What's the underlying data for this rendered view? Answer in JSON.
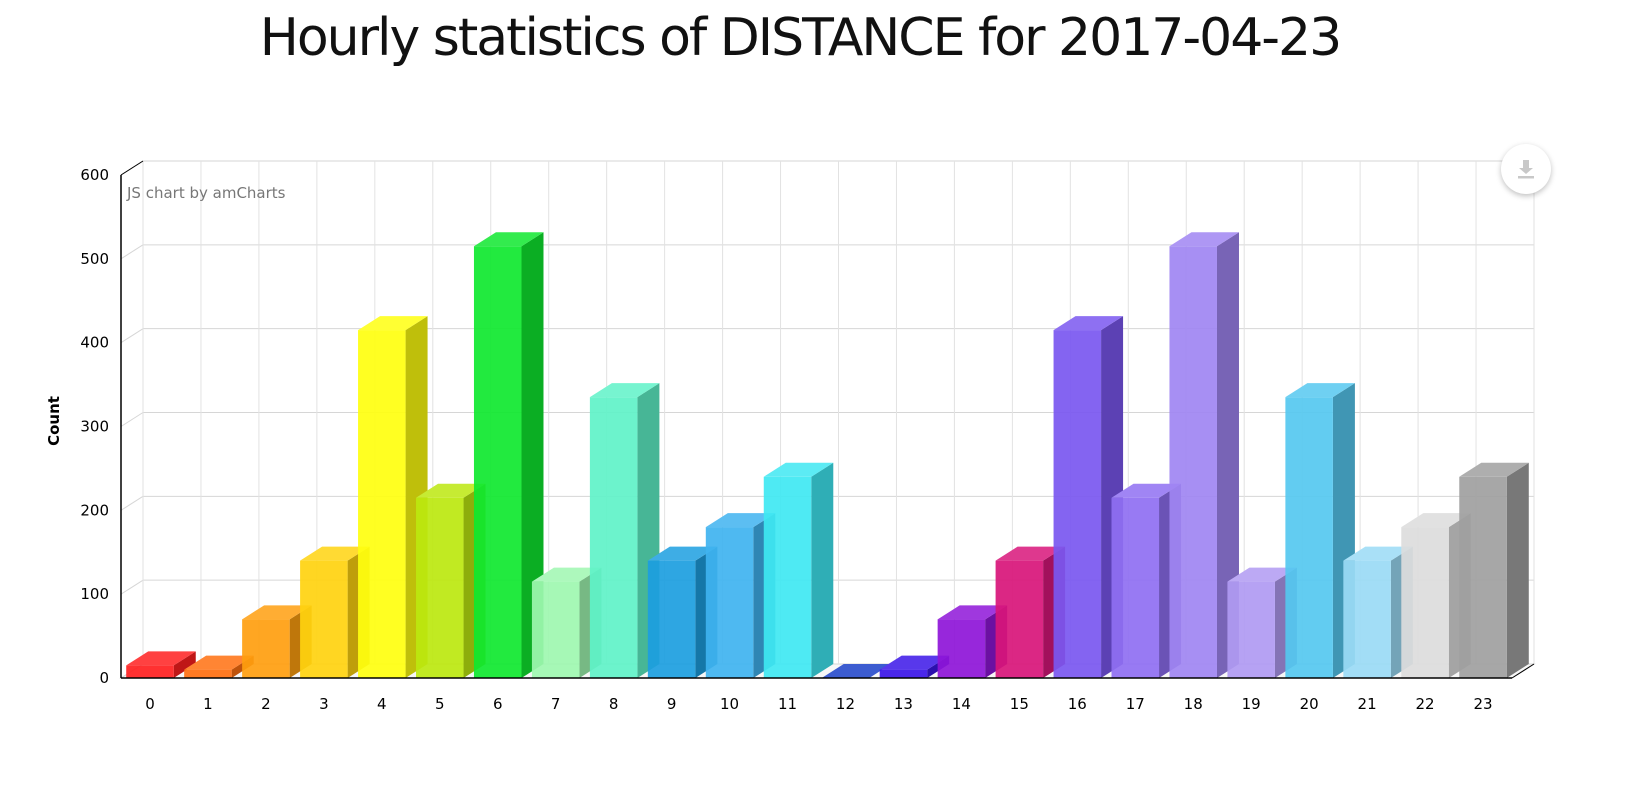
{
  "page": {
    "title": "Hourly statistics of DISTANCE for 2017-04-23",
    "credit": "JS chart by amCharts",
    "export_icon": "download-icon"
  },
  "chart_data": {
    "type": "bar",
    "title": "Hourly statistics of DISTANCE for 2017-04-23",
    "xlabel": "",
    "ylabel": "Count",
    "ylim": [
      0,
      600
    ],
    "yticks": [
      0,
      100,
      200,
      300,
      400,
      500,
      600
    ],
    "grid": true,
    "three_d": true,
    "categories": [
      "0",
      "1",
      "2",
      "3",
      "4",
      "5",
      "6",
      "7",
      "8",
      "9",
      "10",
      "11",
      "12",
      "13",
      "14",
      "15",
      "16",
      "17",
      "18",
      "19",
      "20",
      "21",
      "22",
      "23"
    ],
    "values": [
      15,
      10,
      70,
      140,
      415,
      215,
      515,
      115,
      335,
      140,
      180,
      240,
      0,
      10,
      70,
      140,
      415,
      215,
      515,
      115,
      335,
      140,
      180,
      240
    ],
    "colors": [
      "#ff1f1f",
      "#ff6f0f",
      "#ff9e0f",
      "#ffd30f",
      "#ffff0f",
      "#bce80f",
      "#0fe82f",
      "#9ef7b0",
      "#5ff2c8",
      "#1c9ee0",
      "#3fb3f0",
      "#3fe8f2",
      "#1a3fc8",
      "#3b15e8",
      "#8e15d8",
      "#d8157a",
      "#7a57f0",
      "#8f6ff2",
      "#a085f2",
      "#b09af2",
      "#55c8f0",
      "#9adaf5",
      "#dcdcdc",
      "#a0a0a0"
    ]
  }
}
